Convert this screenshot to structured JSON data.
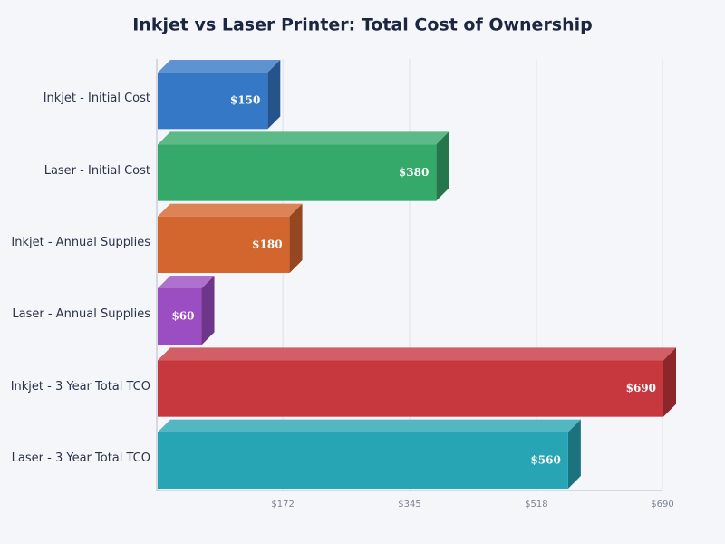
{
  "chart_data": {
    "type": "bar3d",
    "title": "Inkjet vs Laser Printer: Total Cost of Ownership",
    "categories": [
      "Inkjet - Initial Cost",
      "Laser - Initial Cost",
      "Inkjet - Annual Supplies",
      "Laser - Annual Supplies",
      "Inkjet - 3 Year Total TCO",
      "Laser - 3 Year Total TCO"
    ],
    "values": [
      150,
      380,
      180,
      60,
      690,
      560
    ],
    "value_labels": [
      "$150",
      "$380",
      "$180",
      "$60",
      "$690",
      "$560"
    ],
    "colors": [
      "#3478c6",
      "#35a96a",
      "#d3652e",
      "#9b4dc2",
      "#c7373e",
      "#27a5b4"
    ],
    "xlim": [
      0,
      690
    ],
    "xticks": [
      {
        "value": 172,
        "label": "$172"
      },
      {
        "value": 345,
        "label": "$345"
      },
      {
        "value": 518,
        "label": "$518"
      },
      {
        "value": 690,
        "label": "$690"
      }
    ],
    "grid": true
  }
}
